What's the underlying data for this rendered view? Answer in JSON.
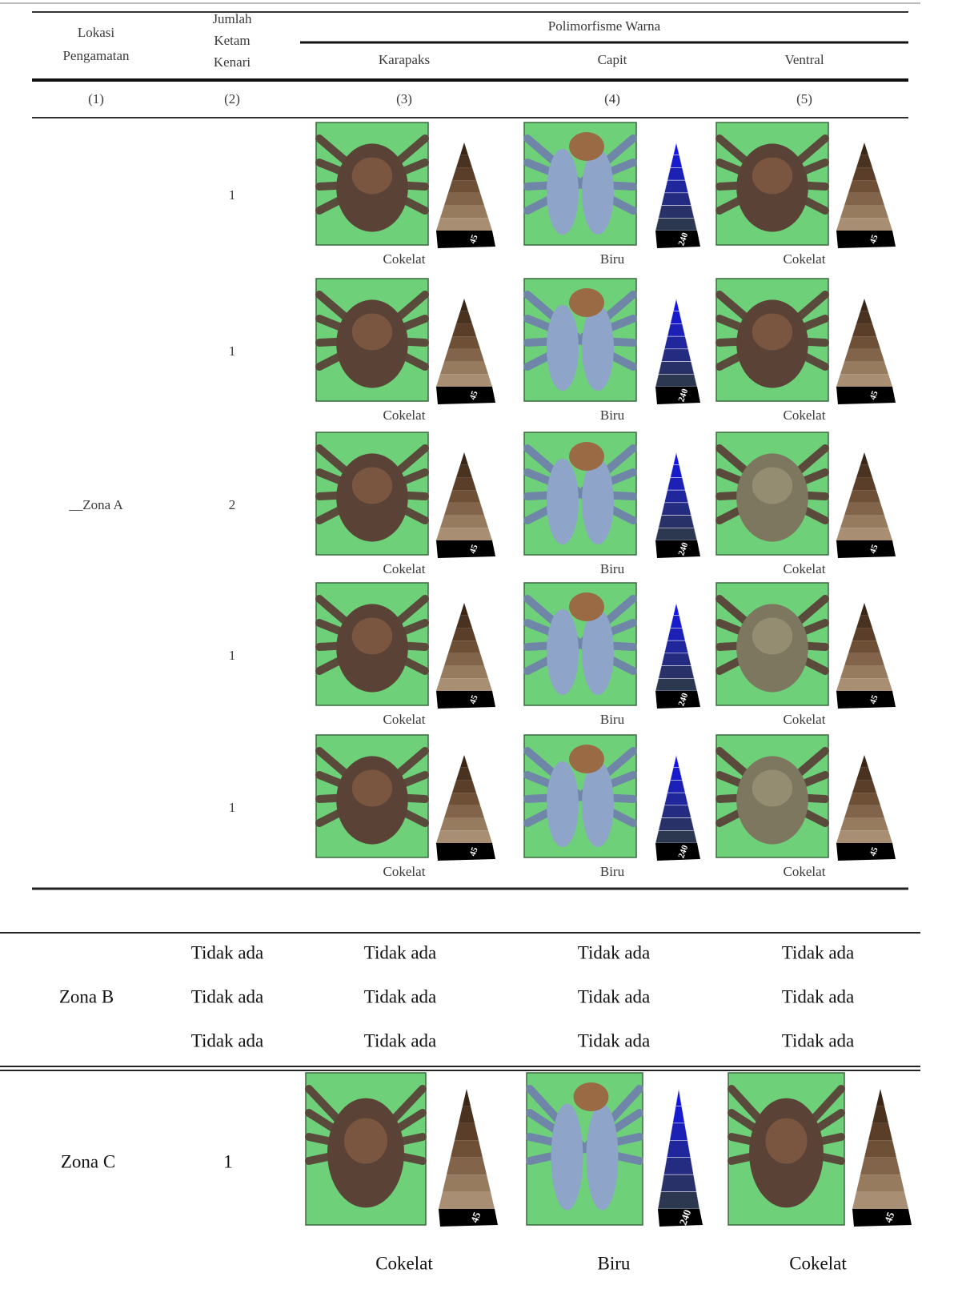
{
  "header": {
    "location": [
      "Lokasi",
      "Pengamatan"
    ],
    "count": [
      "Jumlah",
      "Ketam",
      "Kenari"
    ],
    "group": "Polimorfisme Warna",
    "columns": [
      "Karapaks",
      "Capit",
      "Ventral"
    ],
    "numbers": [
      "(1)",
      "(2)",
      "(3)",
      "(4)",
      "(5)"
    ]
  },
  "zones": [
    {
      "name": "__Zona A",
      "rows": [
        {
          "count": 1,
          "cells": [
            {
              "color": "Cokelat",
              "scale": "45"
            },
            {
              "color": "Biru",
              "scale": "240"
            },
            {
              "color": "Cokelat",
              "scale": "45"
            }
          ]
        },
        {
          "count": 1,
          "cells": [
            {
              "color": "Cokelat",
              "scale": "45"
            },
            {
              "color": "Biru",
              "scale": "240"
            },
            {
              "color": "Cokelat",
              "scale": "45"
            }
          ]
        },
        {
          "count": 2,
          "cells": [
            {
              "color": "Cokelat",
              "scale": "45"
            },
            {
              "color": "Biru",
              "scale": "240"
            },
            {
              "color": "Cokelat",
              "scale": "45"
            }
          ]
        },
        {
          "count": 1,
          "cells": [
            {
              "color": "Cokelat",
              "scale": "45"
            },
            {
              "color": "Biru",
              "scale": "240"
            },
            {
              "color": "Cokelat",
              "scale": "45"
            }
          ]
        },
        {
          "count": 1,
          "cells": [
            {
              "color": "Cokelat",
              "scale": "45"
            },
            {
              "color": "Biru",
              "scale": "240"
            },
            {
              "color": "Cokelat",
              "scale": "45"
            }
          ]
        }
      ]
    },
    {
      "name": "Zona B",
      "rows": [
        {
          "count": "Tidak ada",
          "cells": [
            "Tidak ada",
            "Tidak ada",
            "Tidak ada"
          ]
        },
        {
          "count": "Tidak ada",
          "cells": [
            "Tidak ada",
            "Tidak ada",
            "Tidak ada"
          ]
        },
        {
          "count": "Tidak ada",
          "cells": [
            "Tidak ada",
            "Tidak ada",
            "Tidak ada"
          ]
        }
      ]
    },
    {
      "name": "Zona C",
      "rows": [
        {
          "count": 1,
          "cells": [
            {
              "color": "Cokelat",
              "scale": "45"
            },
            {
              "color": "Biru",
              "scale": "240"
            },
            {
              "color": "Cokelat",
              "scale": "45"
            }
          ]
        }
      ]
    }
  ]
}
